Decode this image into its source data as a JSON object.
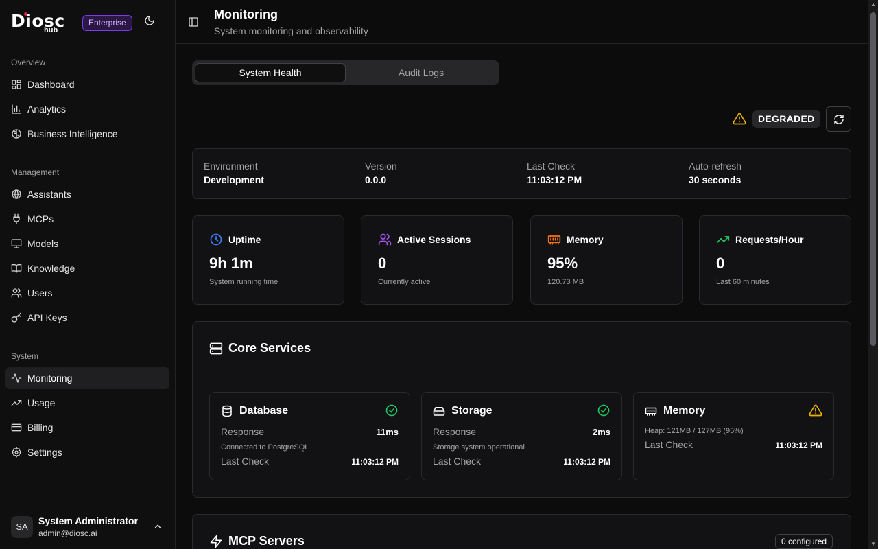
{
  "app": {
    "brand_main": "Diosc",
    "brand_sub": "hub",
    "plan_badge": "Enterprise"
  },
  "sidebar": {
    "sections": [
      {
        "label": "Overview",
        "items": [
          {
            "label": "Dashboard",
            "icon": "layout-dashboard-icon"
          },
          {
            "label": "Analytics",
            "icon": "bar-chart-icon"
          },
          {
            "label": "Business Intelligence",
            "icon": "brain-icon"
          }
        ]
      },
      {
        "label": "Management",
        "items": [
          {
            "label": "Assistants",
            "icon": "globe-icon"
          },
          {
            "label": "MCPs",
            "icon": "plug-icon"
          },
          {
            "label": "Models",
            "icon": "monitor-icon"
          },
          {
            "label": "Knowledge",
            "icon": "book-open-icon"
          },
          {
            "label": "Users",
            "icon": "users-icon"
          },
          {
            "label": "API Keys",
            "icon": "key-icon"
          }
        ]
      },
      {
        "label": "System",
        "items": [
          {
            "label": "Monitoring",
            "icon": "activity-icon",
            "active": true
          },
          {
            "label": "Usage",
            "icon": "trending-up-icon"
          },
          {
            "label": "Billing",
            "icon": "credit-card-icon"
          },
          {
            "label": "Settings",
            "icon": "settings-icon"
          }
        ]
      }
    ],
    "user": {
      "initials": "SA",
      "name": "System Administrator",
      "email": "admin@diosc.ai"
    }
  },
  "header": {
    "title": "Monitoring",
    "subtitle": "System monitoring and observability"
  },
  "tabs": [
    {
      "label": "System Health",
      "active": true
    },
    {
      "label": "Audit Logs",
      "active": false
    }
  ],
  "status": {
    "label": "DEGRADED",
    "color": "#eab308"
  },
  "info": [
    {
      "label": "Environment",
      "value": "Development"
    },
    {
      "label": "Version",
      "value": "0.0.0"
    },
    {
      "label": "Last Check",
      "value": "11:03:12 PM"
    },
    {
      "label": "Auto-refresh",
      "value": "30 seconds"
    }
  ],
  "metrics": [
    {
      "title": "Uptime",
      "value": "9h 1m",
      "sub": "System running time",
      "icon": "clock-icon",
      "color": "#3b82f6"
    },
    {
      "title": "Active Sessions",
      "value": "0",
      "sub": "Currently active",
      "icon": "users-icon",
      "color": "#a855f7"
    },
    {
      "title": "Memory",
      "value": "95%",
      "sub": "120.73 MB",
      "icon": "memory-stick-icon",
      "color": "#f97316"
    },
    {
      "title": "Requests/Hour",
      "value": "0",
      "sub": "Last 60 minutes",
      "icon": "trending-up-icon",
      "color": "#22c55e"
    }
  ],
  "core_services": {
    "title": "Core Services",
    "services": [
      {
        "name": "Database",
        "response_label": "Response",
        "response": "11ms",
        "note": "Connected to PostgreSQL",
        "last_check_label": "Last Check",
        "last_check": "11:03:12 PM",
        "status": "healthy"
      },
      {
        "name": "Storage",
        "response_label": "Response",
        "response": "2ms",
        "note": "Storage system operational",
        "last_check_label": "Last Check",
        "last_check": "11:03:12 PM",
        "status": "healthy"
      },
      {
        "name": "Memory",
        "note": "Heap: 121MB / 127MB (95%)",
        "last_check_label": "Last Check",
        "last_check": "11:03:12 PM",
        "status": "warning"
      }
    ]
  },
  "mcp": {
    "title": "MCP Servers",
    "badge": "0 configured"
  },
  "colors": {
    "healthy": "#22c55e",
    "warning": "#eab308",
    "accent": "#7c3aed"
  }
}
